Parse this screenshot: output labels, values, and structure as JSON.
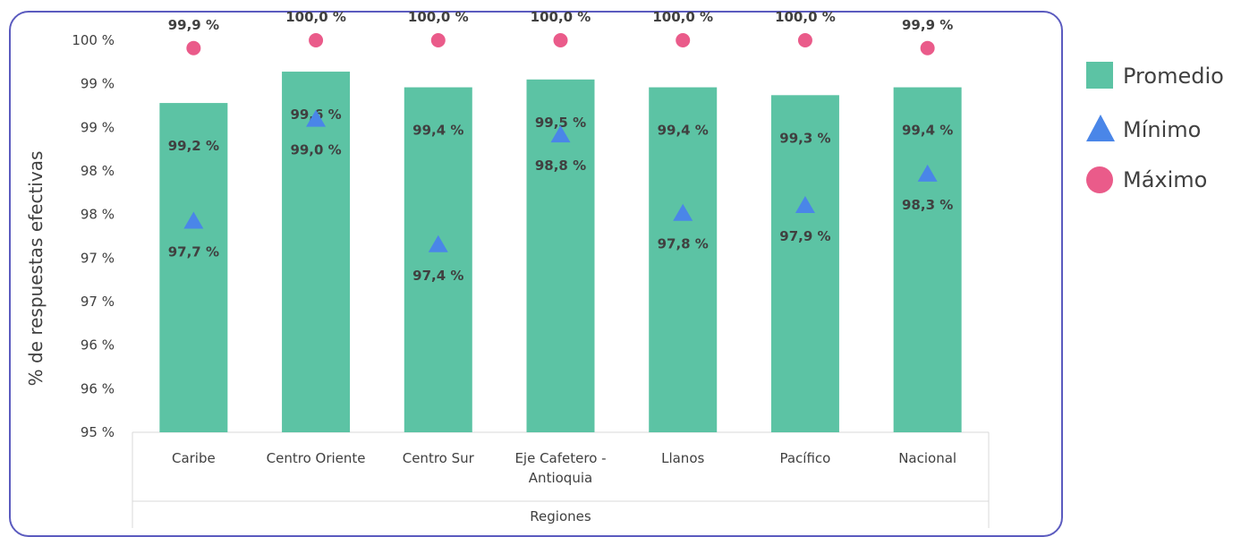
{
  "chart_data": {
    "type": "bar",
    "xlabel": "Regiones",
    "ylabel": "% de respuestas efectivas",
    "ylim": [
      95,
      100
    ],
    "y_tick_labels": [
      "95 %",
      "96 %",
      "96 %",
      "97 %",
      "97 %",
      "98 %",
      "98 %",
      "99 %",
      "99 %",
      "100 %"
    ],
    "grid": false,
    "categories": [
      "Caribe",
      "Centro Oriente",
      "Centro Sur",
      "Eje Cafetero -\nAntioquia",
      "Llanos",
      "Pacífico",
      "Nacional"
    ],
    "series": [
      {
        "name": "Promedio",
        "type": "bar",
        "values": [
          99.2,
          99.6,
          99.4,
          99.5,
          99.4,
          99.3,
          99.4
        ],
        "labels": [
          "99,2 %",
          "99,6 %",
          "99,4 %",
          "99,5 %",
          "99,4 %",
          "99,3 %",
          "99,4 %"
        ]
      },
      {
        "name": "Mínimo",
        "type": "triangle-marker",
        "values": [
          97.7,
          99.0,
          97.4,
          98.8,
          97.8,
          97.9,
          98.3
        ],
        "labels": [
          "97,7 %",
          "99,0 %",
          "97,4 %",
          "98,8 %",
          "97,8 %",
          "97,9 %",
          "98,3 %"
        ]
      },
      {
        "name": "Máximo",
        "type": "circle-marker",
        "values": [
          99.9,
          100.0,
          100.0,
          100.0,
          100.0,
          100.0,
          99.9
        ],
        "labels": [
          "99,9 %",
          "100,0 %",
          "100,0 %",
          "100,0 %",
          "100,0 %",
          "100,0 %",
          "99,9 %"
        ]
      }
    ],
    "legend_position": "right",
    "colors": {
      "Promedio": "#5cc3a4",
      "Mínimo": "#4a86e8",
      "Máximo": "#ea5b8a",
      "frame": "#5b5bbf",
      "text": "#404040"
    }
  }
}
